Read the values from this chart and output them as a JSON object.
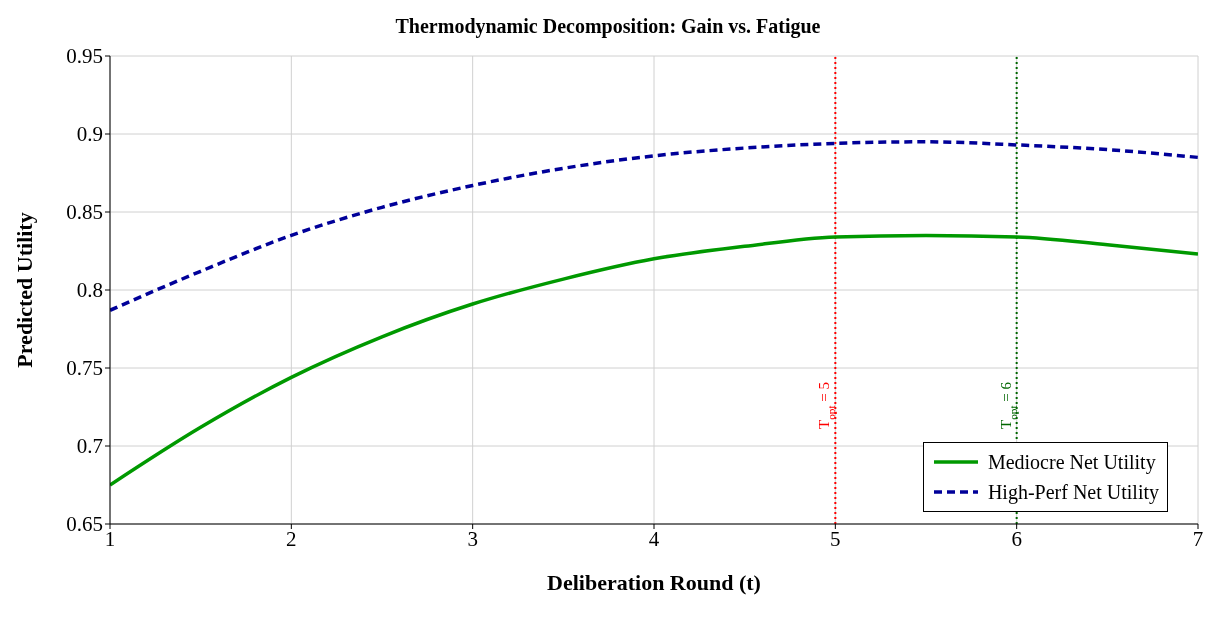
{
  "chart_data": {
    "type": "line",
    "title": "Thermodynamic Decomposition: Gain vs. Fatigue",
    "xlabel": "Deliberation Round (t)",
    "ylabel": "Predicted Utility",
    "x": [
      1,
      1.5,
      2,
      2.5,
      3,
      3.5,
      4,
      4.5,
      5,
      5.5,
      6,
      6.5,
      7
    ],
    "series": [
      {
        "name": "Mediocre Net Utility",
        "color": "#009900",
        "line_style": "solid",
        "values": [
          0.675,
          0.712,
          0.744,
          0.77,
          0.791,
          0.807,
          0.82,
          0.828,
          0.834,
          0.835,
          0.834,
          0.829,
          0.823
        ]
      },
      {
        "name": "High-Perf Net Utility",
        "color": "#000099",
        "line_style": "dashed",
        "values": [
          0.787,
          0.812,
          0.835,
          0.853,
          0.867,
          0.878,
          0.886,
          0.891,
          0.894,
          0.895,
          0.893,
          0.89,
          0.885
        ]
      }
    ],
    "xlim": [
      1,
      7
    ],
    "xticks": [
      1,
      2,
      3,
      4,
      5,
      6,
      7
    ],
    "ylim": [
      0.65,
      0.95
    ],
    "yticks": [
      0.65,
      0.7,
      0.75,
      0.8,
      0.85,
      0.9,
      0.95
    ],
    "grid": true,
    "legend": "bottom right",
    "marker": "none",
    "ref_lines": [
      {
        "axis": "x",
        "value": 5,
        "label": "T$_{opt}$ = 5",
        "color": "#ff0000",
        "line_style": "dotted"
      },
      {
        "axis": "x",
        "value": 6,
        "label": "T$_{opt}$ = 6",
        "color": "#006600",
        "line_style": "dotted"
      }
    ]
  }
}
